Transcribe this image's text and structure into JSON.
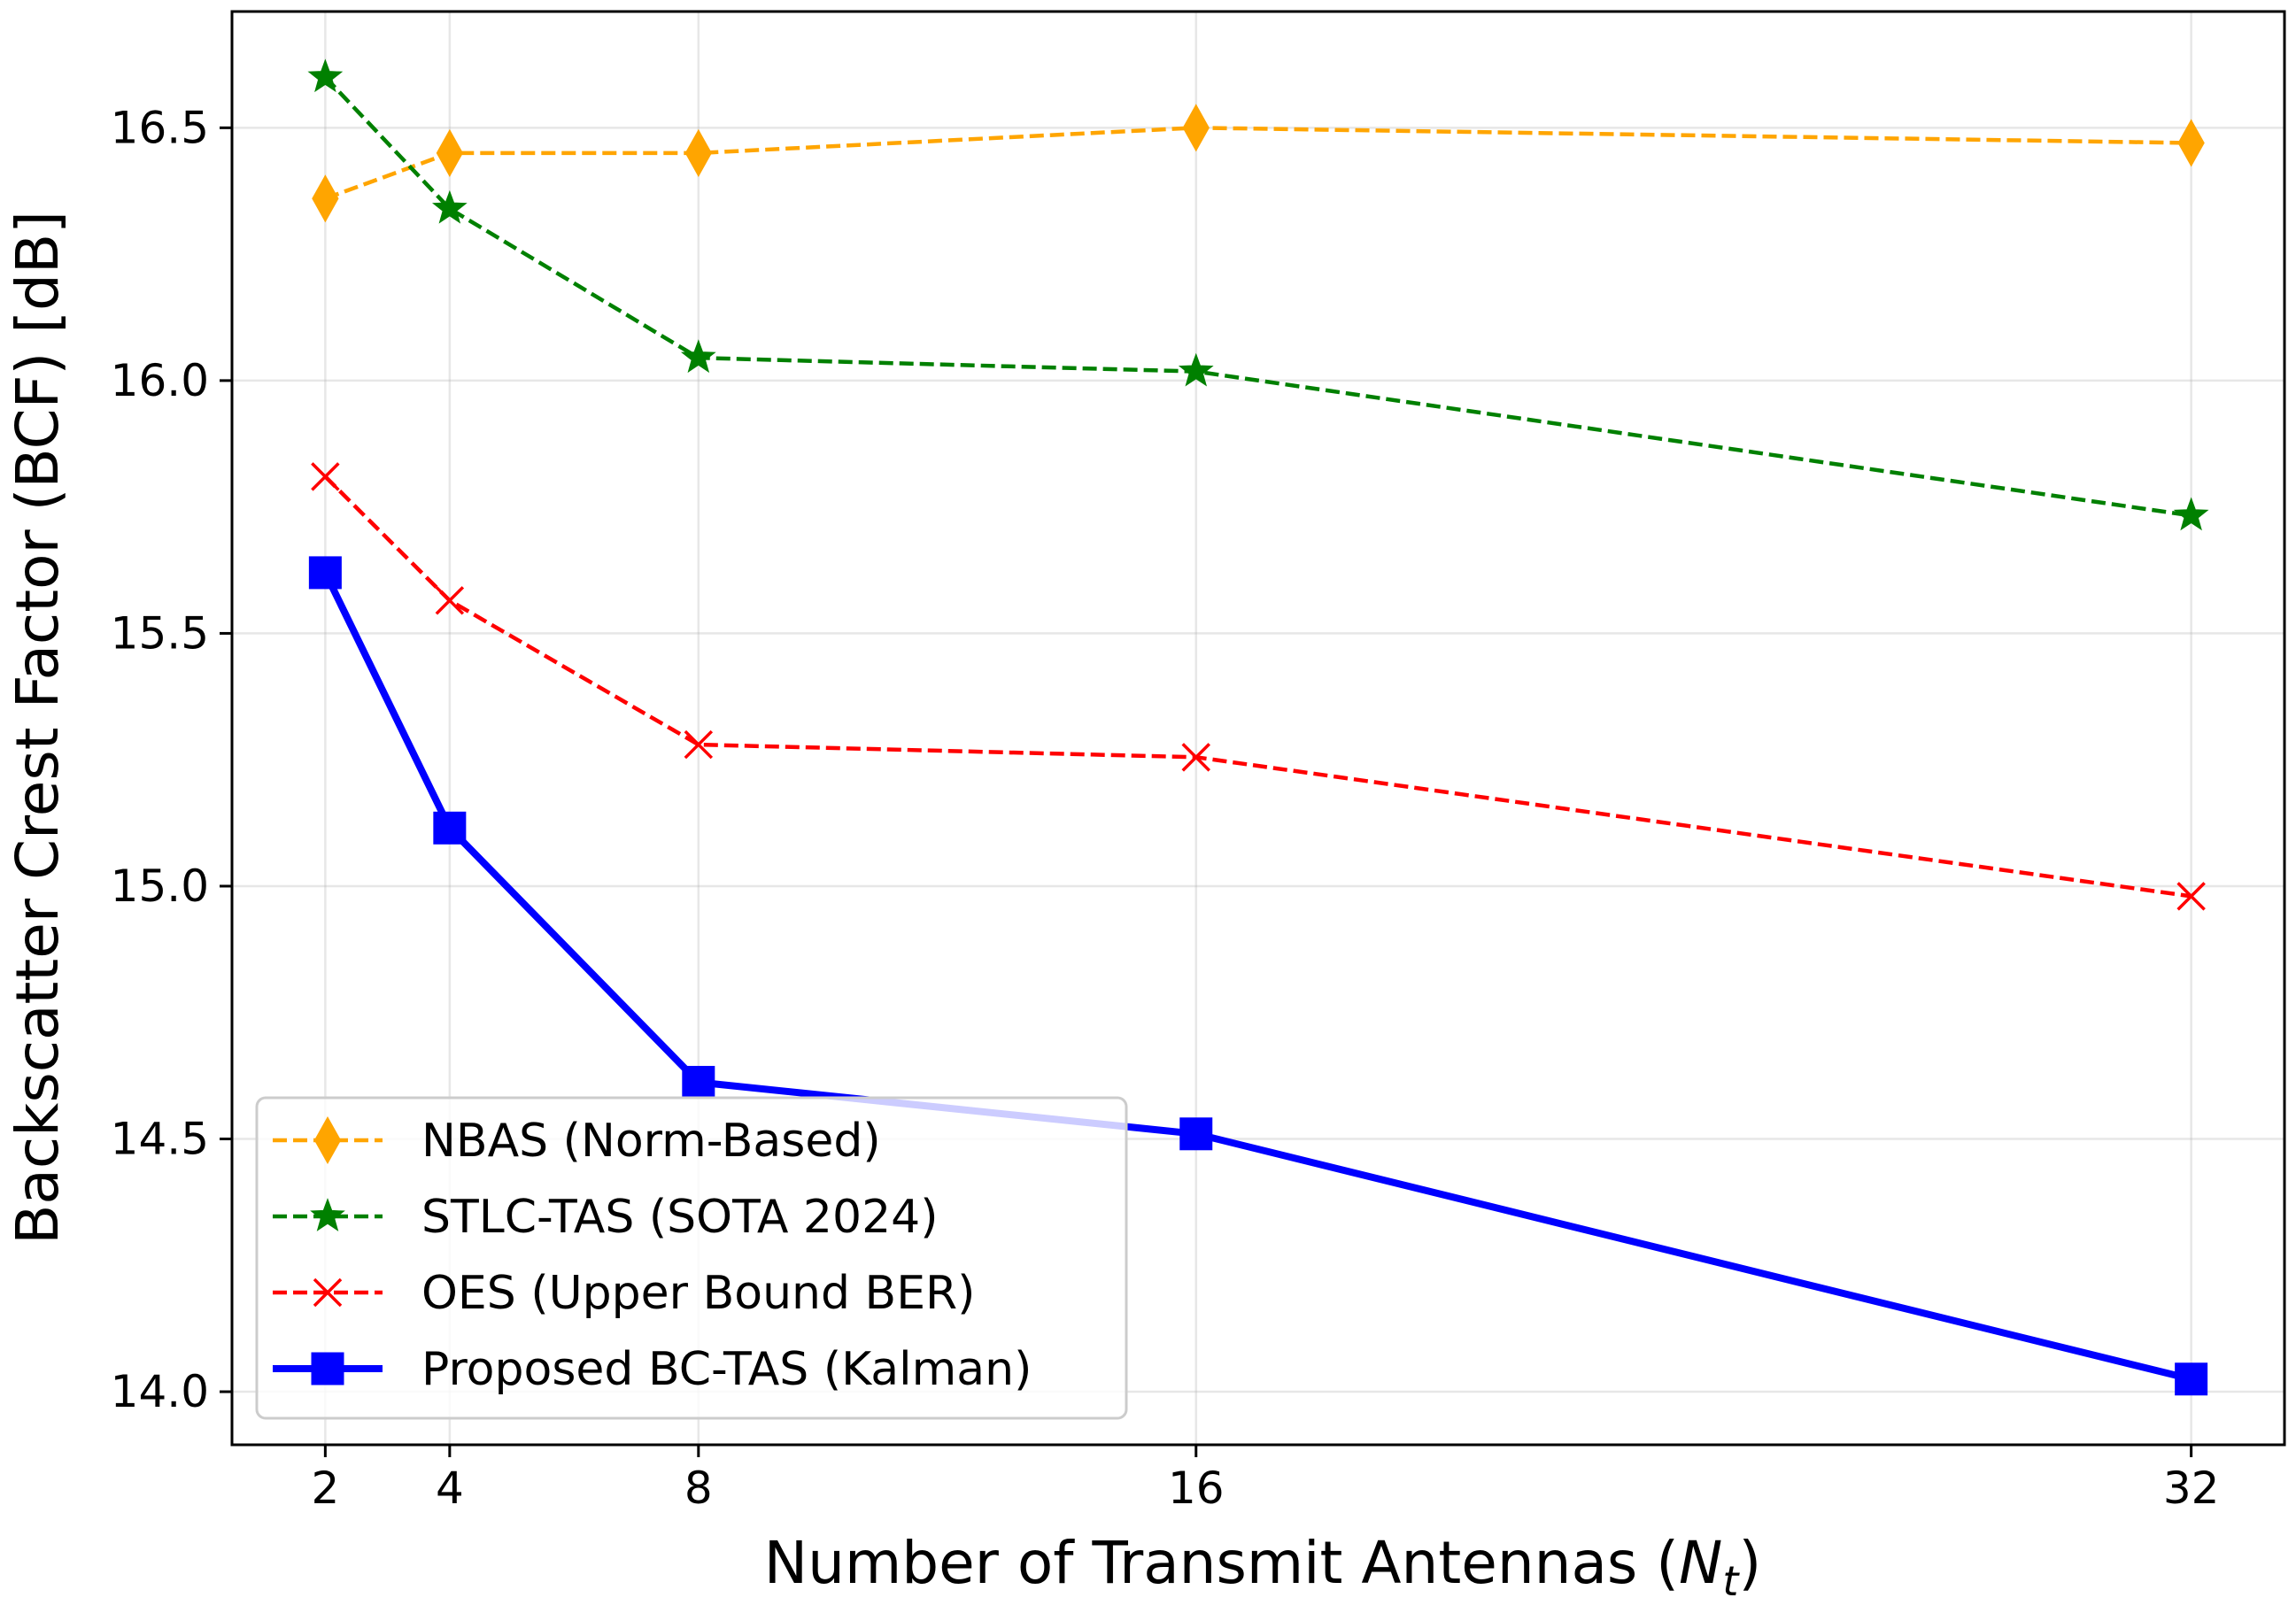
{
  "chart_data": {
    "type": "line",
    "title": "",
    "xlabel": "Number of Transmit Antennas (",
    "xlabel_symbol": "N",
    "xlabel_subscript": "t",
    "xlabel_close": ")",
    "ylabel": "Backscatter Crest Factor (BCF) [dB]",
    "x": [
      2,
      4,
      8,
      16,
      32
    ],
    "xticks": [
      "2",
      "4",
      "8",
      "16",
      "32"
    ],
    "yticks": [
      "14.0",
      "14.5",
      "15.0",
      "15.5",
      "16.0",
      "16.5"
    ],
    "xlim": [
      0.5,
      33.5
    ],
    "ylim": [
      13.895,
      16.73
    ],
    "grid": true,
    "legend_position": "lower-left",
    "series": [
      {
        "name": "NBAS (Norm-Based)",
        "values": [
          16.36,
          16.45,
          16.45,
          16.5,
          16.47
        ],
        "color": "#ffa500",
        "linestyle": "dashed",
        "marker": "thin-diamond"
      },
      {
        "name": "STLC-TAS (SOTA 2024)",
        "values": [
          16.6,
          16.34,
          16.045,
          16.018,
          15.733
        ],
        "color": "#008000",
        "linestyle": "dashed",
        "marker": "star"
      },
      {
        "name": "OES (Upper Bound BER)",
        "values": [
          15.81,
          15.565,
          15.28,
          15.255,
          14.98
        ],
        "color": "#ff0000",
        "linestyle": "dashed",
        "marker": "x"
      },
      {
        "name": "Proposed BC-TAS (Kalman)",
        "values": [
          15.62,
          15.115,
          14.612,
          14.51,
          14.025
        ],
        "color": "#0000ff",
        "linestyle": "solid",
        "marker": "square"
      }
    ]
  }
}
